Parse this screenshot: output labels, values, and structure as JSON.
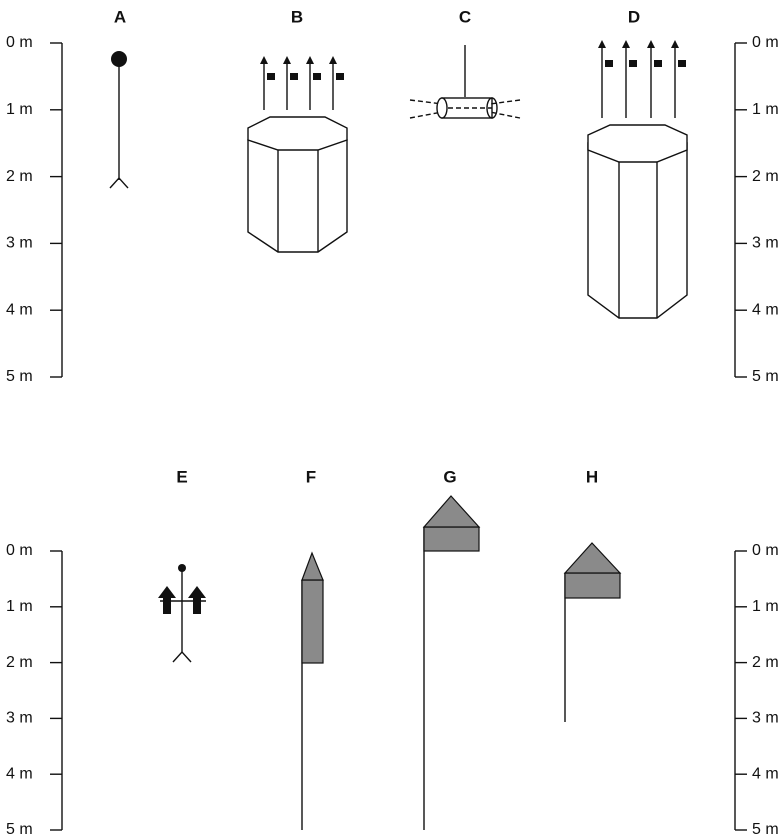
{
  "top": {
    "labels": [
      "A",
      "B",
      "C",
      "D"
    ],
    "scale_left": [
      "0 m",
      "1 m",
      "2 m",
      "3 m",
      "4 m",
      "5 m"
    ],
    "scale_right": [
      "0 m",
      "1 m",
      "2 m",
      "3 m",
      "4 m",
      "5 m"
    ]
  },
  "bottom": {
    "labels": [
      "E",
      "F",
      "G",
      "H"
    ],
    "scale_left": [
      "0 m",
      "1 m",
      "2 m",
      "3 m",
      "4 m",
      "5 m"
    ],
    "scale_right": [
      "0 m",
      "1 m",
      "2 m",
      "3 m",
      "4 m",
      "5 m"
    ]
  }
}
